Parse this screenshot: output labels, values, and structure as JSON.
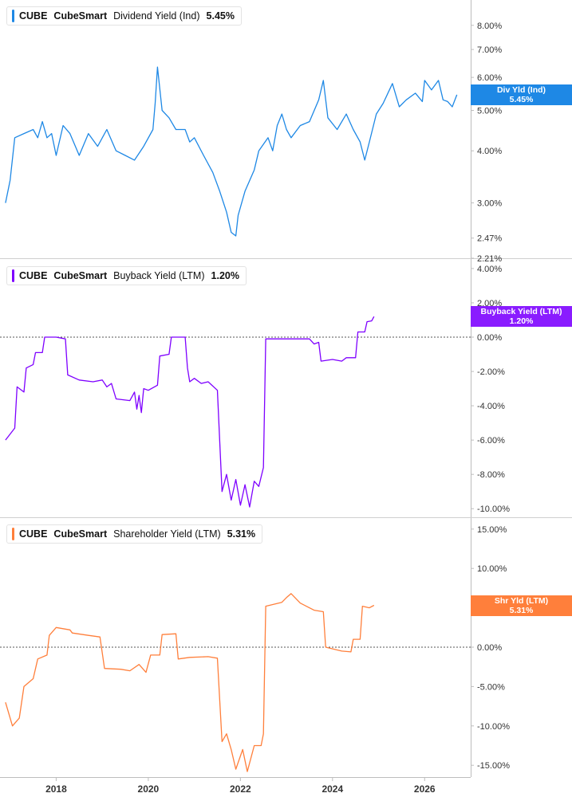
{
  "chart_data": [
    {
      "type": "line",
      "ticker": "CUBE",
      "company": "CubeSmart",
      "series_name": "Dividend Yield (Ind)",
      "last_value_label": "5.45%",
      "tag_line1": "Div Yld (Ind)",
      "tag_line2": "5.45%",
      "color": "#1e88e5",
      "y_scale": "log",
      "y_ticks": [
        {
          "v": 8,
          "label": "8.00%"
        },
        {
          "v": 7,
          "label": "7.00%"
        },
        {
          "v": 6,
          "label": "6.00%"
        },
        {
          "v": 5,
          "label": "5.00%"
        },
        {
          "v": 4,
          "label": "4.00%"
        },
        {
          "v": 3,
          "label": "3.00%"
        },
        {
          "v": 2.47,
          "label": "2.47%"
        },
        {
          "v": 2.21,
          "label": "2.21%"
        }
      ],
      "ylim": [
        2.21,
        9.2
      ],
      "zero_line": false,
      "points": [
        [
          2016.9,
          3.0
        ],
        [
          2017.0,
          3.4
        ],
        [
          2017.1,
          4.3
        ],
        [
          2017.3,
          4.4
        ],
        [
          2017.5,
          4.5
        ],
        [
          2017.6,
          4.3
        ],
        [
          2017.7,
          4.7
        ],
        [
          2017.8,
          4.3
        ],
        [
          2017.9,
          4.4
        ],
        [
          2018.0,
          3.9
        ],
        [
          2018.15,
          4.6
        ],
        [
          2018.3,
          4.4
        ],
        [
          2018.5,
          3.9
        ],
        [
          2018.7,
          4.4
        ],
        [
          2018.9,
          4.1
        ],
        [
          2019.1,
          4.5
        ],
        [
          2019.3,
          4.0
        ],
        [
          2019.5,
          3.9
        ],
        [
          2019.7,
          3.8
        ],
        [
          2019.9,
          4.1
        ],
        [
          2020.1,
          4.5
        ],
        [
          2020.15,
          5.2
        ],
        [
          2020.2,
          6.35
        ],
        [
          2020.3,
          5.0
        ],
        [
          2020.45,
          4.8
        ],
        [
          2020.6,
          4.5
        ],
        [
          2020.8,
          4.5
        ],
        [
          2020.9,
          4.2
        ],
        [
          2021.0,
          4.3
        ],
        [
          2021.2,
          3.9
        ],
        [
          2021.4,
          3.55
        ],
        [
          2021.55,
          3.2
        ],
        [
          2021.7,
          2.85
        ],
        [
          2021.8,
          2.55
        ],
        [
          2021.9,
          2.5
        ],
        [
          2021.95,
          2.8
        ],
        [
          2022.1,
          3.2
        ],
        [
          2022.3,
          3.6
        ],
        [
          2022.4,
          4.0
        ],
        [
          2022.6,
          4.3
        ],
        [
          2022.7,
          4.0
        ],
        [
          2022.8,
          4.6
        ],
        [
          2022.9,
          4.9
        ],
        [
          2023.0,
          4.5
        ],
        [
          2023.1,
          4.3
        ],
        [
          2023.3,
          4.6
        ],
        [
          2023.5,
          4.7
        ],
        [
          2023.7,
          5.3
        ],
        [
          2023.8,
          5.9
        ],
        [
          2023.9,
          4.8
        ],
        [
          2024.1,
          4.5
        ],
        [
          2024.3,
          4.9
        ],
        [
          2024.45,
          4.5
        ],
        [
          2024.6,
          4.2
        ],
        [
          2024.7,
          3.8
        ],
        [
          2024.8,
          4.2
        ],
        [
          2024.95,
          4.9
        ],
        [
          2025.1,
          5.2
        ],
        [
          2025.3,
          5.8
        ],
        [
          2025.45,
          5.1
        ],
        [
          2025.6,
          5.3
        ],
        [
          2025.8,
          5.5
        ],
        [
          2025.95,
          5.25
        ],
        [
          2026.0,
          5.9
        ],
        [
          2026.15,
          5.6
        ],
        [
          2026.3,
          5.9
        ],
        [
          2026.4,
          5.3
        ],
        [
          2026.5,
          5.25
        ],
        [
          2026.6,
          5.1
        ],
        [
          2026.7,
          5.45
        ]
      ]
    },
    {
      "type": "line",
      "ticker": "CUBE",
      "company": "CubeSmart",
      "series_name": "Buyback Yield (LTM)",
      "last_value_label": "1.20%",
      "tag_line1": "Buyback Yield (LTM)",
      "tag_line2": "1.20%",
      "color": "#7e00ff",
      "y_scale": "linear",
      "y_ticks": [
        {
          "v": 4,
          "label": "4.00%"
        },
        {
          "v": 2,
          "label": "2.00%"
        },
        {
          "v": 0,
          "label": "0.00%"
        },
        {
          "v": -2,
          "label": "-2.00%"
        },
        {
          "v": -4,
          "label": "-4.00%"
        },
        {
          "v": -6,
          "label": "-6.00%"
        },
        {
          "v": -8,
          "label": "-8.00%"
        },
        {
          "v": -10,
          "label": "-10.00%"
        }
      ],
      "ylim": [
        -10.5,
        4.6
      ],
      "zero_line": true,
      "points": [
        [
          2016.9,
          -6.0
        ],
        [
          2017.1,
          -5.3
        ],
        [
          2017.15,
          -2.9
        ],
        [
          2017.3,
          -3.2
        ],
        [
          2017.35,
          -1.8
        ],
        [
          2017.5,
          -1.6
        ],
        [
          2017.55,
          -0.9
        ],
        [
          2017.7,
          -0.9
        ],
        [
          2017.75,
          0.0
        ],
        [
          2018.0,
          0.0
        ],
        [
          2018.2,
          -0.1
        ],
        [
          2018.25,
          -2.2
        ],
        [
          2018.5,
          -2.5
        ],
        [
          2018.8,
          -2.6
        ],
        [
          2019.0,
          -2.5
        ],
        [
          2019.1,
          -2.9
        ],
        [
          2019.2,
          -2.7
        ],
        [
          2019.3,
          -3.6
        ],
        [
          2019.6,
          -3.7
        ],
        [
          2019.7,
          -3.2
        ],
        [
          2019.75,
          -4.2
        ],
        [
          2019.8,
          -3.4
        ],
        [
          2019.85,
          -4.4
        ],
        [
          2019.9,
          -3.0
        ],
        [
          2020.0,
          -3.1
        ],
        [
          2020.2,
          -2.8
        ],
        [
          2020.25,
          -1.1
        ],
        [
          2020.45,
          -1.0
        ],
        [
          2020.5,
          0.0
        ],
        [
          2020.8,
          0.0
        ],
        [
          2020.85,
          -1.8
        ],
        [
          2020.9,
          -2.6
        ],
        [
          2021.0,
          -2.4
        ],
        [
          2021.15,
          -2.7
        ],
        [
          2021.3,
          -2.6
        ],
        [
          2021.5,
          -3.1
        ],
        [
          2021.6,
          -9.0
        ],
        [
          2021.7,
          -8.0
        ],
        [
          2021.8,
          -9.5
        ],
        [
          2021.9,
          -8.3
        ],
        [
          2022.0,
          -9.8
        ],
        [
          2022.1,
          -8.6
        ],
        [
          2022.2,
          -9.9
        ],
        [
          2022.3,
          -8.4
        ],
        [
          2022.4,
          -8.7
        ],
        [
          2022.5,
          -7.6
        ],
        [
          2022.55,
          -0.1
        ],
        [
          2023.0,
          -0.1
        ],
        [
          2023.5,
          -0.1
        ],
        [
          2023.6,
          -0.4
        ],
        [
          2023.7,
          -0.3
        ],
        [
          2023.75,
          -1.4
        ],
        [
          2024.0,
          -1.3
        ],
        [
          2024.2,
          -1.4
        ],
        [
          2024.3,
          -1.2
        ],
        [
          2024.5,
          -1.2
        ],
        [
          2024.55,
          0.3
        ],
        [
          2024.7,
          0.3
        ],
        [
          2024.75,
          0.9
        ],
        [
          2024.85,
          0.95
        ],
        [
          2024.9,
          1.2
        ]
      ]
    },
    {
      "type": "line",
      "ticker": "CUBE",
      "company": "CubeSmart",
      "series_name": "Shareholder Yield (LTM)",
      "last_value_label": "5.31%",
      "tag_line1": "Shr Yld (LTM)",
      "tag_line2": "5.31%",
      "color": "#ff7f3b",
      "y_scale": "linear",
      "y_ticks": [
        {
          "v": 15,
          "label": "15.00%"
        },
        {
          "v": 10,
          "label": "10.00%"
        },
        {
          "v": 5,
          "label": "5.00%"
        },
        {
          "v": 0,
          "label": "0.00%"
        },
        {
          "v": -5,
          "label": "-5.00%"
        },
        {
          "v": -10,
          "label": "-10.00%"
        },
        {
          "v": -15,
          "label": "-15.00%"
        }
      ],
      "ylim": [
        -16.5,
        16.5
      ],
      "zero_line": true,
      "points": [
        [
          2016.9,
          -7.0
        ],
        [
          2017.05,
          -10.0
        ],
        [
          2017.2,
          -9.0
        ],
        [
          2017.3,
          -5.0
        ],
        [
          2017.5,
          -4.0
        ],
        [
          2017.6,
          -1.5
        ],
        [
          2017.8,
          -1.0
        ],
        [
          2017.85,
          1.5
        ],
        [
          2018.0,
          2.5
        ],
        [
          2018.3,
          2.2
        ],
        [
          2018.35,
          1.8
        ],
        [
          2018.7,
          1.5
        ],
        [
          2018.95,
          1.3
        ],
        [
          2019.05,
          -2.7
        ],
        [
          2019.4,
          -2.8
        ],
        [
          2019.6,
          -3.0
        ],
        [
          2019.8,
          -2.2
        ],
        [
          2019.95,
          -3.2
        ],
        [
          2020.05,
          -1.0
        ],
        [
          2020.25,
          -1.0
        ],
        [
          2020.3,
          1.6
        ],
        [
          2020.6,
          1.7
        ],
        [
          2020.65,
          -1.5
        ],
        [
          2020.9,
          -1.3
        ],
        [
          2021.3,
          -1.2
        ],
        [
          2021.5,
          -1.4
        ],
        [
          2021.6,
          -12.0
        ],
        [
          2021.7,
          -11.0
        ],
        [
          2021.8,
          -13.0
        ],
        [
          2021.9,
          -15.5
        ],
        [
          2022.05,
          -13.0
        ],
        [
          2022.15,
          -15.8
        ],
        [
          2022.3,
          -12.5
        ],
        [
          2022.45,
          -12.5
        ],
        [
          2022.5,
          -11.0
        ],
        [
          2022.55,
          5.2
        ],
        [
          2022.9,
          5.7
        ],
        [
          2023.0,
          6.3
        ],
        [
          2023.1,
          6.8
        ],
        [
          2023.3,
          5.6
        ],
        [
          2023.6,
          4.7
        ],
        [
          2023.8,
          4.5
        ],
        [
          2023.85,
          0.0
        ],
        [
          2024.2,
          -0.5
        ],
        [
          2024.4,
          -0.6
        ],
        [
          2024.45,
          1.0
        ],
        [
          2024.6,
          1.0
        ],
        [
          2024.65,
          5.2
        ],
        [
          2024.8,
          5.0
        ],
        [
          2024.9,
          5.31
        ]
      ]
    }
  ],
  "x_axis": {
    "ticks": [
      {
        "v": 2018,
        "label": "2018"
      },
      {
        "v": 2020,
        "label": "2020"
      },
      {
        "v": 2022,
        "label": "2022"
      },
      {
        "v": 2024,
        "label": "2024"
      },
      {
        "v": 2026,
        "label": "2026"
      }
    ],
    "xlim": [
      2016.78,
      2027.0
    ]
  }
}
